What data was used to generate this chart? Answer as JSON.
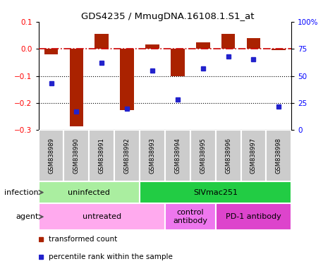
{
  "title": "GDS4235 / MmugDNA.16108.1.S1_at",
  "samples": [
    "GSM838989",
    "GSM838990",
    "GSM838991",
    "GSM838992",
    "GSM838993",
    "GSM838994",
    "GSM838995",
    "GSM838996",
    "GSM838997",
    "GSM838998"
  ],
  "bar_values": [
    -0.02,
    -0.285,
    0.055,
    -0.225,
    0.015,
    -0.1,
    0.025,
    0.055,
    0.04,
    -0.005
  ],
  "dot_values": [
    43,
    17,
    62,
    20,
    55,
    28,
    57,
    68,
    65,
    22
  ],
  "ylim_left": [
    -0.3,
    0.1
  ],
  "ylim_right": [
    0,
    100
  ],
  "yticks_left": [
    -0.3,
    -0.2,
    -0.1,
    0.0,
    0.1
  ],
  "yticks_right": [
    0,
    25,
    50,
    75,
    100
  ],
  "ytick_right_labels": [
    "0",
    "25",
    "50",
    "75",
    "100%"
  ],
  "bar_color": "#aa2200",
  "dot_color": "#2222cc",
  "hline_color": "#cc0000",
  "grid_color": "#000000",
  "infection_groups": [
    {
      "label": "uninfected",
      "start": 0,
      "end": 4,
      "color": "#aaeea0"
    },
    {
      "label": "SIVmac251",
      "start": 4,
      "end": 10,
      "color": "#22cc44"
    }
  ],
  "agent_groups": [
    {
      "label": "untreated",
      "start": 0,
      "end": 5,
      "color": "#ffaaee"
    },
    {
      "label": "control\nantibody",
      "start": 5,
      "end": 7,
      "color": "#ee77ee"
    },
    {
      "label": "PD-1 antibody",
      "start": 7,
      "end": 10,
      "color": "#dd44cc"
    }
  ],
  "sample_bg_color": "#cccccc",
  "sample_edge_color": "#ffffff",
  "infection_label": "infection",
  "agent_label": "agent",
  "legend_bar_color": "#aa2200",
  "legend_dot_color": "#2222cc",
  "legend_bar_label": "transformed count",
  "legend_dot_label": "percentile rank within the sample"
}
